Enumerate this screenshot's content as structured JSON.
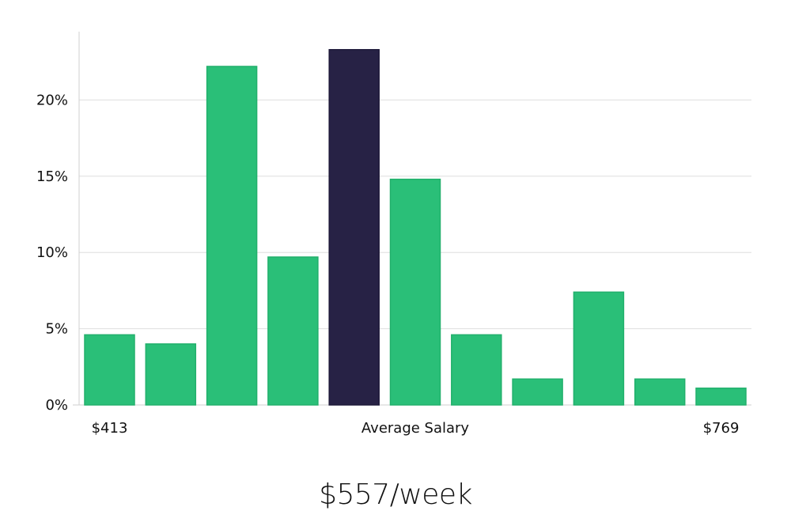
{
  "chart_data": {
    "type": "bar",
    "bin_count": 11,
    "values": [
      4.6,
      4.0,
      22.2,
      9.7,
      23.3,
      14.8,
      4.6,
      1.7,
      7.4,
      1.7,
      1.1
    ],
    "highlight_index": 4,
    "y_unit": "%",
    "ylim": [
      0,
      25
    ],
    "yticks": [
      "0%",
      "5%",
      "10%",
      "15%",
      "20%"
    ],
    "ytick_values": [
      0,
      5,
      10,
      15,
      20
    ],
    "x_min_label": "$413",
    "x_max_label": "$769",
    "xlabel": "Average Salary",
    "grid": true,
    "colors": {
      "bar": "#2abf78",
      "bar_edge": "#22b06c",
      "highlight": "#272245",
      "grid": "#dedede"
    }
  },
  "headline": "$557/week"
}
